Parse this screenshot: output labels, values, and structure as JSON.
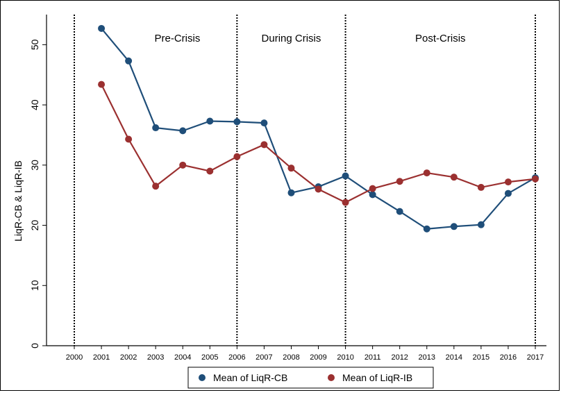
{
  "chart_data": {
    "type": "line",
    "title": "",
    "xlabel": "",
    "ylabel": "LiqR-CB & LiqR-IB",
    "x": [
      2000,
      2001,
      2002,
      2003,
      2004,
      2005,
      2006,
      2007,
      2008,
      2009,
      2010,
      2011,
      2012,
      2013,
      2014,
      2015,
      2016,
      2017
    ],
    "xlim": [
      2000,
      2017
    ],
    "ylim": [
      0,
      55
    ],
    "yticks": [
      0,
      10,
      20,
      30,
      40,
      50
    ],
    "grid": false,
    "legend_position": "bottom",
    "series": [
      {
        "name": "Mean of LiqR-CB",
        "color": "#1f4e79",
        "x": [
          2001,
          2002,
          2003,
          2004,
          2005,
          2006,
          2007,
          2008,
          2009,
          2010,
          2011,
          2012,
          2013,
          2014,
          2015,
          2016,
          2017
        ],
        "values": [
          52.7,
          47.3,
          36.2,
          35.7,
          37.3,
          37.2,
          37.0,
          25.4,
          26.4,
          28.2,
          25.1,
          22.3,
          19.4,
          19.8,
          20.1,
          25.3,
          27.9
        ]
      },
      {
        "name": "Mean of LiqR-IB",
        "color": "#9b3030",
        "x": [
          2001,
          2002,
          2003,
          2004,
          2005,
          2006,
          2007,
          2008,
          2009,
          2010,
          2011,
          2012,
          2013,
          2014,
          2015,
          2016,
          2017
        ],
        "values": [
          43.4,
          34.3,
          26.5,
          30.0,
          29.0,
          31.4,
          33.4,
          29.5,
          26.0,
          23.8,
          26.1,
          27.3,
          28.7,
          28.0,
          26.3,
          27.2,
          27.7
        ]
      }
    ],
    "dividers": [
      2000,
      2006,
      2010,
      2017
    ],
    "period_labels": [
      {
        "text": "Pre-Crisis",
        "x": 2003.8,
        "y": 50.5
      },
      {
        "text": "During Crisis",
        "x": 2008.0,
        "y": 50.5
      },
      {
        "text": "Post-Crisis",
        "x": 2013.5,
        "y": 50.5
      }
    ]
  }
}
